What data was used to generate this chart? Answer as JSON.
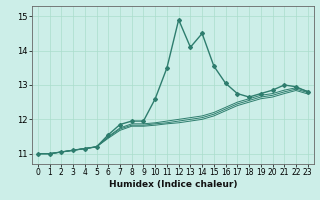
{
  "title": "",
  "xlabel": "Humidex (Indice chaleur)",
  "ylabel": "",
  "background_color": "#cceee8",
  "grid_color": "#aaddcc",
  "line_color": "#2e7d6e",
  "xlim": [
    -0.5,
    23.5
  ],
  "ylim": [
    10.7,
    15.3
  ],
  "yticks": [
    11,
    12,
    13,
    14,
    15
  ],
  "xticks": [
    0,
    1,
    2,
    3,
    4,
    5,
    6,
    7,
    8,
    9,
    10,
    11,
    12,
    13,
    14,
    15,
    16,
    17,
    18,
    19,
    20,
    21,
    22,
    23
  ],
  "series": [
    [
      11.0,
      11.0,
      11.05,
      11.1,
      11.15,
      11.2,
      11.55,
      11.85,
      11.95,
      11.95,
      12.6,
      13.5,
      14.9,
      14.1,
      14.5,
      13.55,
      13.05,
      12.75,
      12.65,
      12.75,
      12.85,
      13.0,
      12.95,
      12.8
    ],
    [
      11.0,
      11.0,
      11.05,
      11.1,
      11.15,
      11.2,
      11.5,
      11.75,
      11.87,
      11.87,
      11.9,
      11.95,
      12.0,
      12.05,
      12.1,
      12.2,
      12.35,
      12.5,
      12.6,
      12.7,
      12.75,
      12.85,
      12.92,
      12.82
    ],
    [
      11.0,
      11.0,
      11.05,
      11.1,
      11.15,
      11.2,
      11.48,
      11.72,
      11.83,
      11.83,
      11.87,
      11.9,
      11.95,
      12.0,
      12.05,
      12.15,
      12.3,
      12.45,
      12.55,
      12.65,
      12.7,
      12.8,
      12.88,
      12.78
    ],
    [
      11.0,
      11.0,
      11.05,
      11.1,
      11.15,
      11.2,
      11.45,
      11.68,
      11.8,
      11.8,
      11.83,
      11.87,
      11.9,
      11.95,
      12.0,
      12.1,
      12.25,
      12.4,
      12.5,
      12.6,
      12.65,
      12.75,
      12.84,
      12.74
    ]
  ],
  "xlabel_fontsize": 6.5,
  "tick_fontsize": 5.5,
  "marker": "D",
  "markersize": 2.0,
  "linewidth_main": 1.0,
  "linewidth_sub": 0.7
}
